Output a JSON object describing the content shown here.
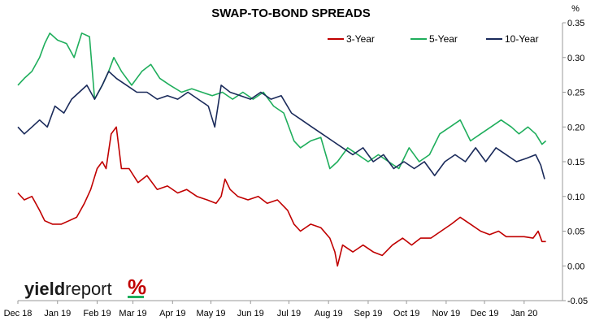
{
  "chart_data": {
    "type": "line",
    "title": "SWAP-TO-BOND SPREADS",
    "unit_label": "%",
    "y_range": [
      -0.05,
      0.35
    ],
    "y_ticks": [
      "0.35",
      "0.30",
      "0.25",
      "0.20",
      "0.15",
      "0.10",
      "0.05",
      "0.00",
      "-0.05"
    ],
    "y_tick_values": [
      0.35,
      0.3,
      0.25,
      0.2,
      0.15,
      0.1,
      0.05,
      0.0,
      -0.05
    ],
    "x_ticks": [
      "Dec 18",
      "Jan 19",
      "Feb 19",
      "Mar 19",
      "Apr 19",
      "May 19",
      "Jun 19",
      "Jul 19",
      "Aug 19",
      "Sep 19",
      "Oct 19",
      "Nov 19",
      "Dec 19",
      "Jan 20"
    ],
    "x_range": [
      "2018-12-01",
      "2020-01-31"
    ],
    "x_tick_dates": [
      "2018-12-01",
      "2019-01-01",
      "2019-02-01",
      "2019-03-01",
      "2019-04-01",
      "2019-05-01",
      "2019-06-01",
      "2019-07-01",
      "2019-08-01",
      "2019-09-01",
      "2019-10-01",
      "2019-11-01",
      "2019-12-01",
      "2020-01-01"
    ],
    "legend_position": "top-right",
    "grid": false,
    "series": [
      {
        "name": "3-Year",
        "color": "#c00000",
        "points": [
          [
            "2018-12-01",
            0.105
          ],
          [
            "2018-12-06",
            0.095
          ],
          [
            "2018-12-12",
            0.1
          ],
          [
            "2018-12-18",
            0.08
          ],
          [
            "2018-12-22",
            0.065
          ],
          [
            "2018-12-28",
            0.06
          ],
          [
            "2019-01-04",
            0.06
          ],
          [
            "2019-01-10",
            0.065
          ],
          [
            "2019-01-16",
            0.07
          ],
          [
            "2019-01-22",
            0.09
          ],
          [
            "2019-01-27",
            0.11
          ],
          [
            "2019-02-01",
            0.14
          ],
          [
            "2019-02-05",
            0.15
          ],
          [
            "2019-02-08",
            0.14
          ],
          [
            "2019-02-12",
            0.19
          ],
          [
            "2019-02-16",
            0.2
          ],
          [
            "2019-02-20",
            0.14
          ],
          [
            "2019-02-26",
            0.14
          ],
          [
            "2019-03-05",
            0.12
          ],
          [
            "2019-03-12",
            0.13
          ],
          [
            "2019-03-20",
            0.11
          ],
          [
            "2019-03-28",
            0.115
          ],
          [
            "2019-04-05",
            0.105
          ],
          [
            "2019-04-12",
            0.11
          ],
          [
            "2019-04-20",
            0.1
          ],
          [
            "2019-04-28",
            0.095
          ],
          [
            "2019-05-05",
            0.09
          ],
          [
            "2019-05-09",
            0.1
          ],
          [
            "2019-05-12",
            0.125
          ],
          [
            "2019-05-16",
            0.11
          ],
          [
            "2019-05-22",
            0.1
          ],
          [
            "2019-05-30",
            0.095
          ],
          [
            "2019-06-07",
            0.1
          ],
          [
            "2019-06-14",
            0.09
          ],
          [
            "2019-06-22",
            0.095
          ],
          [
            "2019-06-30",
            0.08
          ],
          [
            "2019-07-05",
            0.06
          ],
          [
            "2019-07-10",
            0.05
          ],
          [
            "2019-07-18",
            0.06
          ],
          [
            "2019-07-26",
            0.055
          ],
          [
            "2019-08-02",
            0.04
          ],
          [
            "2019-08-06",
            0.02
          ],
          [
            "2019-08-08",
            0.0
          ],
          [
            "2019-08-12",
            0.03
          ],
          [
            "2019-08-20",
            0.02
          ],
          [
            "2019-08-28",
            0.03
          ],
          [
            "2019-09-05",
            0.02
          ],
          [
            "2019-09-12",
            0.015
          ],
          [
            "2019-09-20",
            0.03
          ],
          [
            "2019-09-28",
            0.04
          ],
          [
            "2019-10-05",
            0.03
          ],
          [
            "2019-10-12",
            0.04
          ],
          [
            "2019-10-20",
            0.04
          ],
          [
            "2019-10-28",
            0.05
          ],
          [
            "2019-11-05",
            0.06
          ],
          [
            "2019-11-12",
            0.07
          ],
          [
            "2019-11-20",
            0.06
          ],
          [
            "2019-11-28",
            0.05
          ],
          [
            "2019-12-05",
            0.045
          ],
          [
            "2019-12-12",
            0.05
          ],
          [
            "2019-12-18",
            0.042
          ],
          [
            "2019-12-24",
            0.042
          ],
          [
            "2020-01-01",
            0.042
          ],
          [
            "2020-01-08",
            0.04
          ],
          [
            "2020-01-12",
            0.05
          ],
          [
            "2020-01-15",
            0.035
          ],
          [
            "2020-01-18",
            0.035
          ]
        ]
      },
      {
        "name": "5-Year",
        "color": "#1fae5c",
        "points": [
          [
            "2018-12-01",
            0.26
          ],
          [
            "2018-12-06",
            0.27
          ],
          [
            "2018-12-12",
            0.28
          ],
          [
            "2018-12-18",
            0.3
          ],
          [
            "2018-12-22",
            0.32
          ],
          [
            "2018-12-26",
            0.335
          ],
          [
            "2019-01-01",
            0.325
          ],
          [
            "2019-01-08",
            0.32
          ],
          [
            "2019-01-14",
            0.3
          ],
          [
            "2019-01-20",
            0.335
          ],
          [
            "2019-01-26",
            0.33
          ],
          [
            "2019-01-30",
            0.24
          ],
          [
            "2019-02-05",
            0.26
          ],
          [
            "2019-02-10",
            0.28
          ],
          [
            "2019-02-14",
            0.3
          ],
          [
            "2019-02-20",
            0.28
          ],
          [
            "2019-02-28",
            0.26
          ],
          [
            "2019-03-08",
            0.28
          ],
          [
            "2019-03-15",
            0.29
          ],
          [
            "2019-03-22",
            0.27
          ],
          [
            "2019-03-30",
            0.26
          ],
          [
            "2019-04-08",
            0.25
          ],
          [
            "2019-04-16",
            0.255
          ],
          [
            "2019-04-24",
            0.25
          ],
          [
            "2019-05-02",
            0.245
          ],
          [
            "2019-05-10",
            0.25
          ],
          [
            "2019-05-18",
            0.24
          ],
          [
            "2019-05-26",
            0.25
          ],
          [
            "2019-06-03",
            0.24
          ],
          [
            "2019-06-11",
            0.25
          ],
          [
            "2019-06-19",
            0.23
          ],
          [
            "2019-06-27",
            0.22
          ],
          [
            "2019-07-05",
            0.18
          ],
          [
            "2019-07-10",
            0.17
          ],
          [
            "2019-07-18",
            0.18
          ],
          [
            "2019-07-26",
            0.185
          ],
          [
            "2019-08-02",
            0.14
          ],
          [
            "2019-08-08",
            0.15
          ],
          [
            "2019-08-16",
            0.17
          ],
          [
            "2019-08-24",
            0.16
          ],
          [
            "2019-09-01",
            0.15
          ],
          [
            "2019-09-09",
            0.16
          ],
          [
            "2019-09-17",
            0.15
          ],
          [
            "2019-09-25",
            0.14
          ],
          [
            "2019-10-03",
            0.17
          ],
          [
            "2019-10-11",
            0.15
          ],
          [
            "2019-10-19",
            0.16
          ],
          [
            "2019-10-27",
            0.19
          ],
          [
            "2019-11-04",
            0.2
          ],
          [
            "2019-11-12",
            0.21
          ],
          [
            "2019-11-20",
            0.18
          ],
          [
            "2019-11-28",
            0.19
          ],
          [
            "2019-12-06",
            0.2
          ],
          [
            "2019-12-14",
            0.21
          ],
          [
            "2019-12-22",
            0.2
          ],
          [
            "2019-12-28",
            0.19
          ],
          [
            "2020-01-04",
            0.2
          ],
          [
            "2020-01-10",
            0.19
          ],
          [
            "2020-01-15",
            0.175
          ],
          [
            "2020-01-18",
            0.18
          ]
        ]
      },
      {
        "name": "10-Year",
        "color": "#1a2a5a",
        "points": [
          [
            "2018-12-01",
            0.2
          ],
          [
            "2018-12-06",
            0.19
          ],
          [
            "2018-12-12",
            0.2
          ],
          [
            "2018-12-18",
            0.21
          ],
          [
            "2018-12-24",
            0.2
          ],
          [
            "2018-12-30",
            0.23
          ],
          [
            "2019-01-06",
            0.22
          ],
          [
            "2019-01-12",
            0.24
          ],
          [
            "2019-01-18",
            0.25
          ],
          [
            "2019-01-24",
            0.26
          ],
          [
            "2019-01-30",
            0.24
          ],
          [
            "2019-02-05",
            0.26
          ],
          [
            "2019-02-10",
            0.28
          ],
          [
            "2019-02-16",
            0.27
          ],
          [
            "2019-02-24",
            0.26
          ],
          [
            "2019-03-04",
            0.25
          ],
          [
            "2019-03-12",
            0.25
          ],
          [
            "2019-03-20",
            0.24
          ],
          [
            "2019-03-28",
            0.245
          ],
          [
            "2019-04-05",
            0.24
          ],
          [
            "2019-04-13",
            0.25
          ],
          [
            "2019-04-21",
            0.24
          ],
          [
            "2019-04-29",
            0.23
          ],
          [
            "2019-05-04",
            0.2
          ],
          [
            "2019-05-09",
            0.26
          ],
          [
            "2019-05-16",
            0.25
          ],
          [
            "2019-05-24",
            0.245
          ],
          [
            "2019-06-01",
            0.24
          ],
          [
            "2019-06-09",
            0.25
          ],
          [
            "2019-06-17",
            0.24
          ],
          [
            "2019-06-25",
            0.245
          ],
          [
            "2019-07-03",
            0.22
          ],
          [
            "2019-07-11",
            0.21
          ],
          [
            "2019-07-19",
            0.2
          ],
          [
            "2019-07-27",
            0.19
          ],
          [
            "2019-08-04",
            0.18
          ],
          [
            "2019-08-12",
            0.17
          ],
          [
            "2019-08-20",
            0.16
          ],
          [
            "2019-08-28",
            0.17
          ],
          [
            "2019-09-05",
            0.15
          ],
          [
            "2019-09-13",
            0.16
          ],
          [
            "2019-09-21",
            0.14
          ],
          [
            "2019-09-29",
            0.15
          ],
          [
            "2019-10-07",
            0.14
          ],
          [
            "2019-10-15",
            0.15
          ],
          [
            "2019-10-23",
            0.13
          ],
          [
            "2019-10-31",
            0.15
          ],
          [
            "2019-11-08",
            0.16
          ],
          [
            "2019-11-16",
            0.15
          ],
          [
            "2019-11-24",
            0.17
          ],
          [
            "2019-12-02",
            0.15
          ],
          [
            "2019-12-10",
            0.17
          ],
          [
            "2019-12-18",
            0.16
          ],
          [
            "2019-12-26",
            0.15
          ],
          [
            "2020-01-03",
            0.155
          ],
          [
            "2020-01-10",
            0.16
          ],
          [
            "2020-01-14",
            0.145
          ],
          [
            "2020-01-17",
            0.125
          ]
        ]
      }
    ]
  },
  "logo": {
    "part1": "yield",
    "part2": "report",
    "part3": "%",
    "color_pct": "#c00000",
    "color_bar": "#1fae5c"
  }
}
